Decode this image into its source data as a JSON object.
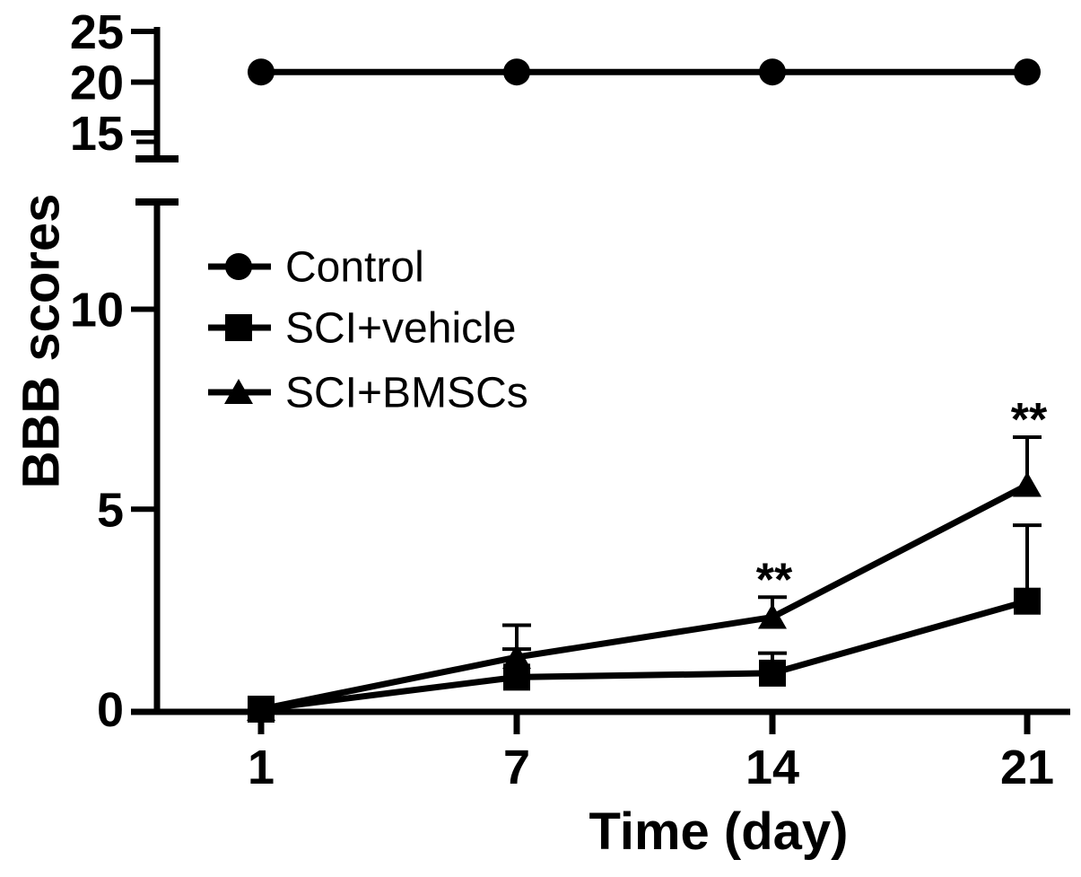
{
  "figure": {
    "background_color": "#ffffff",
    "ink_color": "#000000"
  },
  "chart_data": {
    "type": "line",
    "title": "",
    "xlabel": "Time (day)",
    "ylabel": "BBB scores",
    "x_categories": [
      1,
      7,
      14,
      21
    ],
    "grid": false,
    "axis_break": {
      "top_panel_ticks": [
        25,
        20,
        15
      ],
      "top_panel_range": [
        13.5,
        26
      ],
      "bottom_panel_ticks": [
        10,
        5,
        0
      ],
      "bottom_panel_range": [
        0,
        12.7
      ]
    },
    "legend": {
      "position": "upper-left-inside"
    },
    "series": [
      {
        "name": "Control",
        "marker": "circle",
        "panel": "top",
        "values": [
          21,
          21,
          21,
          21
        ],
        "errors_upper": [
          0,
          0,
          0,
          0
        ]
      },
      {
        "name": "SCI+vehicle",
        "marker": "square",
        "panel": "bottom",
        "values": [
          0,
          0.8,
          0.9,
          2.7
        ],
        "errors_upper": [
          0,
          0.7,
          0.5,
          1.9
        ]
      },
      {
        "name": "SCI+BMSCs",
        "marker": "triangle",
        "panel": "bottom",
        "values": [
          0,
          1.3,
          2.3,
          5.6
        ],
        "errors_upper": [
          0,
          0.8,
          0.5,
          1.2
        ]
      }
    ],
    "annotations": [
      {
        "text": "**",
        "x_category": 14,
        "series": "SCI+BMSCs"
      },
      {
        "text": "**",
        "x_category": 21,
        "series": "SCI+BMSCs"
      }
    ]
  }
}
